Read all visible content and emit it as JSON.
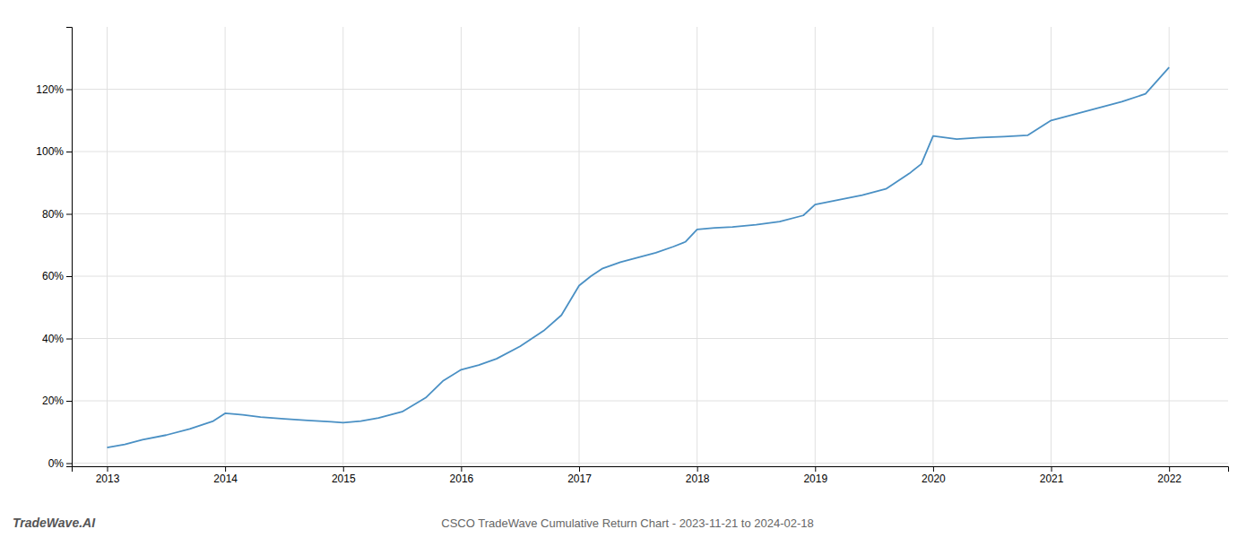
{
  "chart_data": {
    "type": "line",
    "title": "CSCO TradeWave Cumulative Return Chart - 2023-11-21 to 2024-02-18",
    "annotations": [
      "TradeWave.AI"
    ],
    "x": [
      2013.0,
      2013.15,
      2013.3,
      2013.5,
      2013.7,
      2013.9,
      2014.0,
      2014.15,
      2014.3,
      2014.5,
      2014.7,
      2014.9,
      2015.0,
      2015.15,
      2015.3,
      2015.5,
      2015.7,
      2015.85,
      2016.0,
      2016.15,
      2016.3,
      2016.5,
      2016.7,
      2016.85,
      2017.0,
      2017.1,
      2017.2,
      2017.35,
      2017.5,
      2017.65,
      2017.8,
      2017.9,
      2018.0,
      2018.15,
      2018.3,
      2018.5,
      2018.7,
      2018.9,
      2019.0,
      2019.2,
      2019.4,
      2019.6,
      2019.8,
      2019.9,
      2020.0,
      2020.2,
      2020.4,
      2020.6,
      2020.8,
      2021.0,
      2021.2,
      2021.4,
      2021.6,
      2021.8,
      2022.0
    ],
    "values": [
      0.05,
      0.06,
      0.075,
      0.09,
      0.11,
      0.135,
      0.16,
      0.155,
      0.148,
      0.142,
      0.137,
      0.133,
      0.13,
      0.135,
      0.145,
      0.165,
      0.21,
      0.265,
      0.3,
      0.315,
      0.335,
      0.375,
      0.425,
      0.475,
      0.57,
      0.6,
      0.625,
      0.645,
      0.66,
      0.675,
      0.695,
      0.71,
      0.75,
      0.755,
      0.758,
      0.765,
      0.775,
      0.795,
      0.83,
      0.845,
      0.86,
      0.88,
      0.93,
      0.96,
      1.05,
      1.04,
      1.045,
      1.048,
      1.052,
      1.1,
      1.12,
      1.14,
      1.16,
      1.185,
      1.27
    ],
    "color": "#4a90c4",
    "xlim": [
      2012.7,
      2022.5
    ],
    "xticks": [
      2013,
      2014,
      2015,
      2016,
      2017,
      2018,
      2019,
      2020,
      2021,
      2022
    ],
    "ylim": [
      -0.01,
      1.4
    ],
    "yticks": [
      {
        "value": 0.0,
        "label": "0%"
      },
      {
        "value": 0.2,
        "label": "20%"
      },
      {
        "value": 0.4,
        "label": "40%"
      },
      {
        "value": 0.6,
        "label": "60%"
      },
      {
        "value": 0.8,
        "label": "80%"
      },
      {
        "value": 1.0,
        "label": "100%"
      },
      {
        "value": 1.2,
        "label": "120%"
      }
    ],
    "grid": true
  }
}
